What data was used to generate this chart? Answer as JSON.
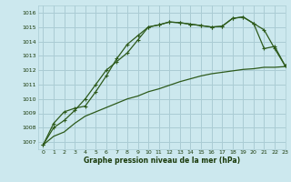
{
  "title": "Graphe pression niveau de la mer (hPa)",
  "bg_color": "#cce8ee",
  "grid_color": "#aaccd4",
  "line_color": "#2d5a1b",
  "text_color": "#1a3a0a",
  "xlim": [
    -0.5,
    23
  ],
  "ylim": [
    1006.5,
    1016.5
  ],
  "yticks": [
    1007,
    1008,
    1009,
    1010,
    1011,
    1012,
    1013,
    1014,
    1015,
    1016
  ],
  "xticks": [
    0,
    1,
    2,
    3,
    4,
    5,
    6,
    7,
    8,
    9,
    10,
    11,
    12,
    13,
    14,
    15,
    16,
    17,
    18,
    19,
    20,
    21,
    22,
    23
  ],
  "line1_x": [
    0,
    1,
    2,
    3,
    4,
    5,
    6,
    7,
    8,
    9,
    10,
    11,
    12,
    13,
    14,
    15,
    16,
    17,
    18,
    19,
    20,
    21,
    22,
    23
  ],
  "line1_y": [
    1006.8,
    1008.0,
    1008.5,
    1009.2,
    1010.0,
    1011.0,
    1012.0,
    1012.6,
    1013.2,
    1014.1,
    1015.0,
    1015.15,
    1015.35,
    1015.3,
    1015.2,
    1015.1,
    1015.0,
    1015.05,
    1015.6,
    1015.7,
    1015.25,
    1014.8,
    1013.5,
    1012.3
  ],
  "line2_x": [
    0,
    1,
    2,
    3,
    4,
    5,
    6,
    7,
    8,
    9,
    10,
    11,
    12,
    13,
    14,
    15,
    16,
    17,
    18,
    19,
    20,
    21,
    22,
    23
  ],
  "line2_y": [
    1006.8,
    1008.3,
    1009.1,
    1009.35,
    1009.5,
    1010.5,
    1011.6,
    1012.8,
    1013.8,
    1014.4,
    1015.0,
    1015.15,
    1015.35,
    1015.3,
    1015.2,
    1015.1,
    1015.0,
    1015.05,
    1015.6,
    1015.7,
    1015.25,
    1013.5,
    1013.65,
    1012.3
  ],
  "line3_x": [
    0,
    1,
    2,
    3,
    4,
    5,
    6,
    7,
    8,
    9,
    10,
    11,
    12,
    13,
    14,
    15,
    16,
    17,
    18,
    19,
    20,
    21,
    22,
    23
  ],
  "line3_y": [
    1006.8,
    1007.4,
    1007.7,
    1008.3,
    1008.8,
    1009.1,
    1009.4,
    1009.7,
    1010.0,
    1010.2,
    1010.5,
    1010.7,
    1010.95,
    1011.2,
    1011.4,
    1011.6,
    1011.75,
    1011.85,
    1011.95,
    1012.05,
    1012.1,
    1012.2,
    1012.2,
    1012.25
  ]
}
